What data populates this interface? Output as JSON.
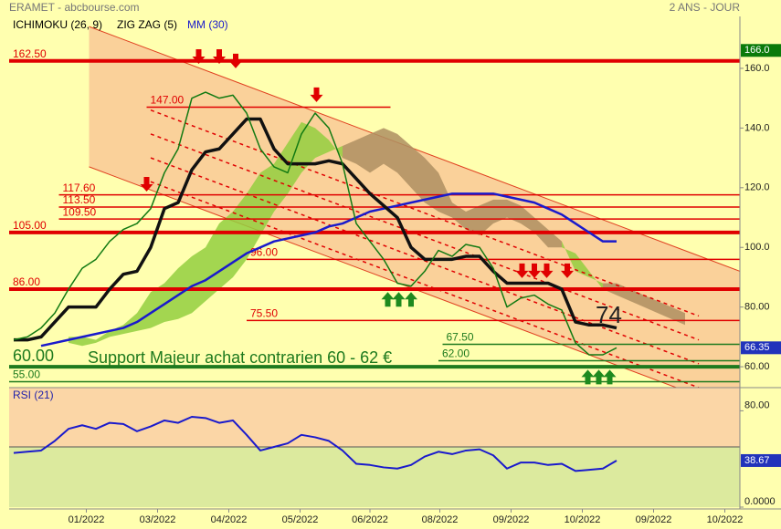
{
  "chart_data": {
    "type": "line",
    "title": "ERAMET - abcbourse.com",
    "period": "2 ANS - JOUR",
    "legend": [
      {
        "name": "ICHIMOKU (26, 9)",
        "color": "#000000"
      },
      {
        "name": "ZIG ZAG (5)",
        "color": "#000000"
      },
      {
        "name": "MM (30)",
        "color": "#1a1acc"
      }
    ],
    "ylim": [
      53,
      177.4
    ],
    "yticks": [
      {
        "value": 60,
        "label": "60.00"
      },
      {
        "value": 80,
        "label": "80.00"
      },
      {
        "value": 100,
        "label": "100.0"
      },
      {
        "value": 120,
        "label": "120.0"
      },
      {
        "value": 140,
        "label": "140.0"
      },
      {
        "value": 160,
        "label": "160.0"
      }
    ],
    "x_labels": [
      {
        "value": 5.3,
        "label": "01/2022"
      },
      {
        "value": 10.5,
        "label": "03/2022"
      },
      {
        "value": 15.7,
        "label": "04/2022"
      },
      {
        "value": 20.9,
        "label": "05/2022"
      },
      {
        "value": 26,
        "label": "06/2022"
      },
      {
        "value": 31.1,
        "label": "08/2022"
      },
      {
        "value": 36.3,
        "label": "09/2022"
      },
      {
        "value": 41.5,
        "label": "10/2022"
      },
      {
        "value": 46.7,
        "label": "09/2022"
      },
      {
        "value": 51.9,
        "label": "10/2022"
      }
    ],
    "channel": {
      "from": 5.5,
      "to": 53,
      "upper": [
        174,
        92
      ],
      "lower": [
        127,
        45
      ],
      "color": "#f9c996"
    },
    "dashes": {
      "from": 10,
      "to": 50,
      "starts": [
        146,
        138,
        130,
        122
      ],
      "ends": [
        77,
        69,
        61,
        53
      ],
      "color": "#e00000"
    },
    "cloud": {
      "bull_color": "#93cf3f",
      "bear_color": "#ae8f62",
      "span_a": [
        null,
        null,
        null,
        null,
        70,
        70,
        69,
        72,
        74,
        78,
        85,
        88,
        93,
        97,
        100,
        108,
        112,
        118,
        125,
        128,
        135,
        142,
        140,
        136,
        130,
        128,
        125,
        128,
        125,
        120,
        115,
        112,
        110,
        106,
        104,
        108,
        110,
        108,
        105,
        100,
        100,
        98,
        92,
        86,
        84,
        82,
        80,
        78,
        76,
        74,
        null,
        null,
        null,
        null
      ],
      "span_b": [
        null,
        null,
        null,
        null,
        68,
        67,
        68,
        70,
        71,
        72,
        73,
        75,
        76,
        78,
        82,
        86,
        90,
        96,
        104,
        112,
        118,
        125,
        130,
        132,
        134,
        136,
        138,
        140,
        138,
        134,
        130,
        125,
        115,
        112,
        114,
        116,
        116,
        114,
        110,
        106,
        102,
        92,
        90,
        88,
        88,
        86,
        84,
        82,
        80,
        78,
        null,
        null,
        null,
        null
      ]
    },
    "levels": [
      {
        "value": 162.5,
        "label": "162.50",
        "color": "#e00000",
        "weight": "thick",
        "from": 0
      },
      {
        "value": 147,
        "label": "147.00",
        "color": "#e00000",
        "weight": "thin",
        "from": 9.7,
        "to": 27.5
      },
      {
        "value": 117.6,
        "label": "117.60",
        "color": "#e00000",
        "weight": "thin",
        "from": 3.3
      },
      {
        "value": 113.5,
        "label": "113.50",
        "color": "#e00000",
        "weight": "thin",
        "from": 3.3
      },
      {
        "value": 109.5,
        "label": "109.50",
        "color": "#e00000",
        "weight": "thin",
        "from": 3.3
      },
      {
        "value": 105,
        "label": "105.00",
        "color": "#e00000",
        "weight": "thick",
        "from": 0
      },
      {
        "value": 96,
        "label": "96.00",
        "color": "#e00000",
        "weight": "thin",
        "from": 17
      },
      {
        "value": 86,
        "label": "86.00",
        "color": "#e00000",
        "weight": "thick",
        "from": 0
      },
      {
        "value": 75.5,
        "label": "75.50",
        "color": "#e00000",
        "weight": "thin",
        "from": 17
      },
      {
        "value": 67.5,
        "label": "67.50",
        "color": "#1e7a1e",
        "weight": "thin",
        "from": 31.3
      },
      {
        "value": 62,
        "label": "62.00",
        "color": "#1e7a1e",
        "weight": "thin",
        "from": 31
      },
      {
        "value": 60,
        "label": "60.00",
        "color": "#1e7a1e",
        "weight": "thick",
        "from": 0,
        "emphasis": true
      },
      {
        "value": 55,
        "label": "55.00",
        "color": "#1e7a1e",
        "weight": "thin",
        "from": 0
      }
    ],
    "price": {
      "color": "#127a12",
      "values": [
        69,
        70,
        73,
        78,
        86,
        93,
        96,
        102,
        106,
        108,
        113,
        125,
        133,
        150,
        152,
        150,
        151,
        145,
        133,
        127,
        125,
        138,
        145,
        140,
        128,
        108,
        102,
        96,
        88,
        87,
        92,
        99,
        97,
        101,
        100,
        93,
        80,
        83,
        84,
        81,
        79,
        68,
        64,
        64,
        66.35,
        null,
        null,
        null,
        null,
        null,
        null,
        null,
        null,
        null
      ]
    },
    "kijun": {
      "color": "#111111",
      "values": [
        69,
        69,
        70,
        75,
        80,
        80,
        80,
        86,
        91,
        92,
        100,
        113,
        115,
        126,
        132,
        133,
        138,
        143,
        143,
        133,
        128,
        128,
        128,
        129,
        128,
        123,
        118,
        114,
        110,
        100,
        96,
        96,
        96,
        97,
        97,
        92,
        88,
        88,
        88,
        88,
        86,
        75,
        74,
        74,
        73,
        null,
        null,
        null,
        null,
        null,
        null,
        null,
        null,
        null
      ]
    },
    "ma": {
      "color": "#1a1acc",
      "values": [
        null,
        null,
        67,
        68,
        69,
        70,
        71,
        72,
        73,
        75,
        78,
        81,
        84,
        87,
        89,
        92,
        95,
        98,
        100,
        102,
        103,
        104,
        105,
        107,
        108,
        110,
        112,
        113,
        114,
        115,
        116,
        117,
        118,
        118,
        118,
        118,
        117,
        116,
        115,
        113,
        111,
        108,
        105,
        102,
        102,
        null,
        null,
        null,
        null,
        null,
        null,
        null,
        null,
        null
      ]
    },
    "sell_signals": {
      "color": "#e00000",
      "x": [
        9.7,
        13.5,
        15,
        16.2,
        22.1,
        37.1,
        38,
        38.9,
        40.4
      ],
      "y": [
        118.7,
        161.5,
        161.5,
        160,
        148.7,
        89.7,
        89.7,
        89.7,
        89.7
      ]
    },
    "buy_signals": {
      "color": "#1e8a1e",
      "x": [
        27.3,
        28.1,
        29,
        41.9,
        42.7,
        43.5
      ],
      "y": [
        85,
        85,
        85,
        59,
        59,
        59
      ]
    },
    "annotations": [
      "Support Majeur achat contrarien  60  - 62 €",
      "74"
    ],
    "price_tag": {
      "value": 166,
      "label": "166.0",
      "color": "#0a7a0a"
    },
    "last_tag_color": "#2233bb",
    "rsi": {
      "type": "line",
      "title": "RSI (21)",
      "ylim": [
        0,
        100
      ],
      "yticks": [
        {
          "value": 0,
          "label": "0.0000"
        },
        {
          "value": 80,
          "label": "80.00"
        }
      ],
      "midline": 50,
      "color": "#1a1acc",
      "values": [
        45,
        46,
        47,
        55,
        65,
        68,
        65,
        70,
        69,
        63,
        67,
        72,
        70,
        75,
        74,
        70,
        72,
        60,
        47,
        50,
        53,
        60,
        58,
        55,
        47,
        36,
        35,
        33,
        32,
        35,
        42,
        46,
        44,
        47,
        48,
        43,
        32,
        37,
        37,
        35,
        36,
        30,
        31,
        32,
        38.67,
        null,
        null,
        null,
        null,
        null,
        null,
        null,
        null,
        null
      ]
    }
  }
}
